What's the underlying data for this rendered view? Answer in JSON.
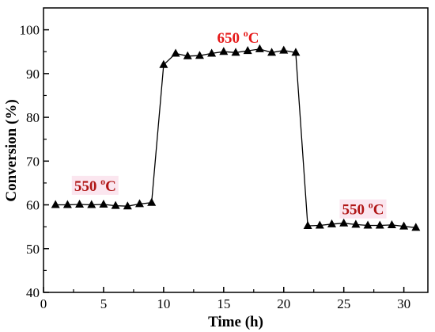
{
  "chart_data": {
    "type": "line",
    "xlabel": "Time (h)",
    "ylabel": "Conversion (%)",
    "xlim": [
      0,
      32
    ],
    "ylim": [
      40,
      105
    ],
    "xticks": [
      "0",
      "5",
      "10",
      "15",
      "20",
      "25",
      "30"
    ],
    "yticks": [
      "40",
      "50",
      "60",
      "70",
      "80",
      "90",
      "100"
    ],
    "grid": false,
    "marker": "filled-triangle",
    "series": [
      {
        "x": [
          1,
          2,
          3,
          4,
          5,
          6,
          7,
          8,
          9,
          10,
          11,
          12,
          13,
          14,
          15,
          16,
          17,
          18,
          19,
          20,
          21,
          22,
          23,
          24,
          25,
          26,
          27,
          28,
          29,
          30,
          31
        ],
        "y": [
          60.0,
          60.0,
          60.1,
          60.0,
          60.1,
          59.8,
          59.7,
          60.2,
          60.5,
          92.0,
          94.6,
          94.0,
          94.1,
          94.6,
          95.0,
          94.8,
          95.2,
          95.6,
          94.8,
          95.3,
          94.8,
          55.2,
          55.3,
          55.6,
          55.8,
          55.5,
          55.3,
          55.3,
          55.4,
          55.1,
          54.8
        ],
        "color": "#000000"
      }
    ],
    "annotations": [
      {
        "text": "550 ",
        "sup": "o",
        "unit": "C",
        "x": 4.3,
        "y": 63.2,
        "color": "#b01616",
        "bg": "#fbe6ef"
      },
      {
        "text": "650 ",
        "sup": "o",
        "unit": "C",
        "x": 16.2,
        "y": 97.0,
        "color": "#e61a1a",
        "bg": "none"
      },
      {
        "text": "550 ",
        "sup": "o",
        "unit": "C",
        "x": 26.6,
        "y": 57.8,
        "color": "#b01616",
        "bg": "#fbe6ef"
      }
    ]
  }
}
